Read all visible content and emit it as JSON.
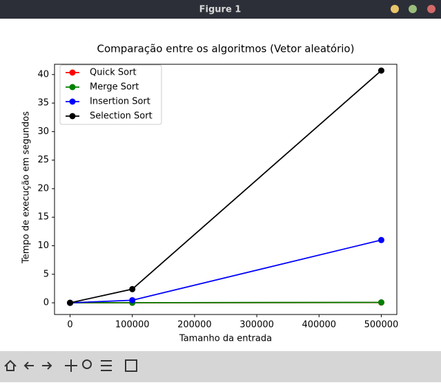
{
  "window": {
    "title": "Figure 1"
  },
  "chart_data": {
    "type": "line",
    "title": "Comparação entre os algoritmos (Vetor aleatório)",
    "x_label": "Tamanho da entrada",
    "y_label": "Tempo de execução em segundos",
    "x": [
      0,
      100000,
      500000
    ],
    "series": [
      {
        "name": "Quick Sort",
        "color": "#ff0000",
        "values": [
          0,
          0.01,
          0.05
        ]
      },
      {
        "name": "Merge Sort",
        "color": "#008000",
        "values": [
          0,
          0.02,
          0.07
        ]
      },
      {
        "name": "Insertion Sort",
        "color": "#0000ff",
        "values": [
          0,
          0.45,
          11.0
        ]
      },
      {
        "name": "Selection Sort",
        "color": "#000000",
        "values": [
          0,
          2.4,
          40.7
        ]
      }
    ],
    "xlim": [
      -25000,
      525000
    ],
    "ylim": [
      -2.05,
      41.8
    ],
    "xticks": [
      0,
      100000,
      200000,
      300000,
      400000,
      500000
    ],
    "yticks": [
      0,
      5,
      10,
      15,
      20,
      25,
      30,
      35,
      40
    ],
    "legend": "upper left",
    "grid": false
  }
}
